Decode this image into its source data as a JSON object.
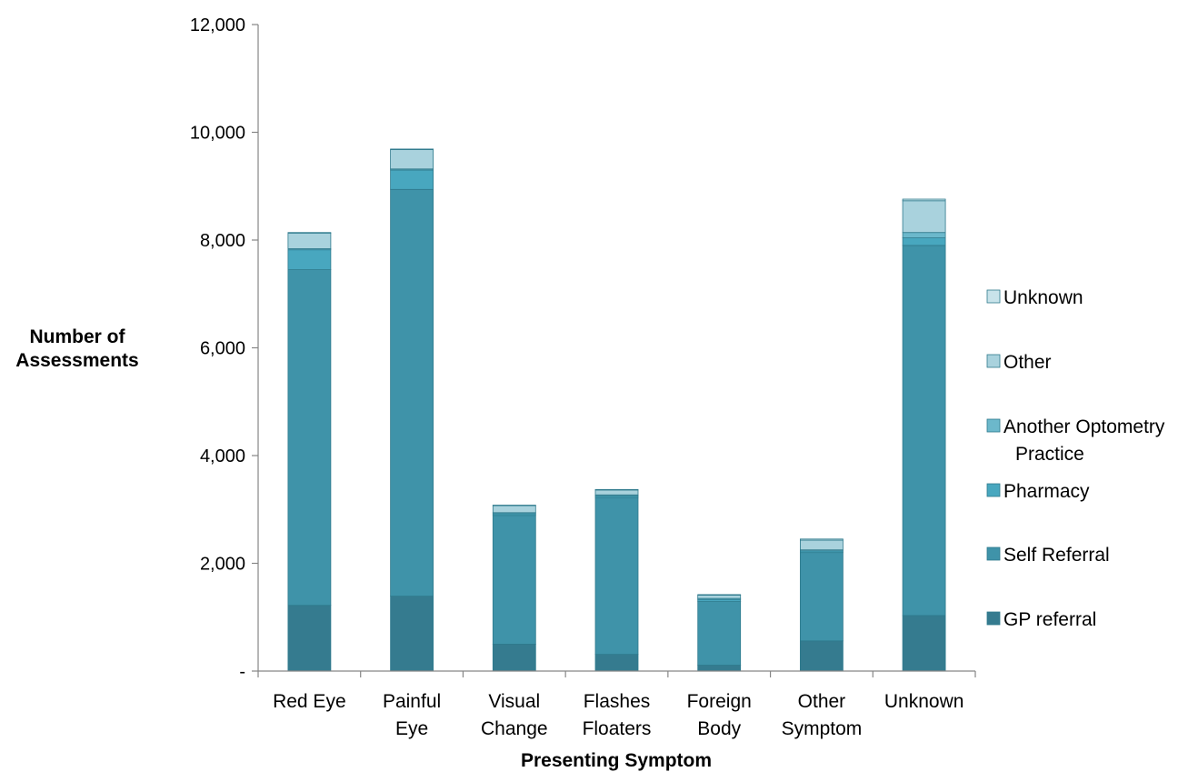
{
  "chart_data": {
    "type": "bar",
    "stacked": true,
    "categories": [
      [
        "Red Eye"
      ],
      [
        "Painful",
        "Eye"
      ],
      [
        "Visual",
        "Change"
      ],
      [
        "Flashes",
        "Floaters"
      ],
      [
        "Foreign",
        "Body"
      ],
      [
        "Other",
        "Symptom"
      ],
      [
        "Unknown"
      ]
    ],
    "series": [
      {
        "name": "GP referral",
        "color": "#357b8f",
        "values": [
          1220,
          1390,
          500,
          310,
          110,
          560,
          1030
        ]
      },
      {
        "name": "Self Referral",
        "color": "#3f93a9",
        "values": [
          6230,
          7550,
          2390,
          2910,
          1180,
          1640,
          6870
        ]
      },
      {
        "name": "Pharmacy",
        "color": "#48a7bf",
        "values": [
          370,
          360,
          30,
          30,
          40,
          30,
          140
        ]
      },
      {
        "name": "Another Optometry Practice",
        "color": "#6cb8cb",
        "values": [
          20,
          20,
          20,
          20,
          20,
          20,
          100
        ]
      },
      {
        "name": "Other",
        "color": "#a9d2dd",
        "values": [
          290,
          360,
          130,
          90,
          60,
          180,
          590
        ]
      },
      {
        "name": "Unknown",
        "color": "#c8e3ea",
        "values": [
          10,
          10,
          10,
          10,
          10,
          20,
          30
        ]
      }
    ],
    "legend_order": [
      "Unknown",
      "Other",
      "Another Optometry Practice",
      "Pharmacy",
      "Self Referral",
      "GP referral"
    ],
    "legend_position": "right",
    "xlabel": "Presenting Symptom",
    "ylabel": [
      "Number of",
      "Assessments"
    ],
    "ylim": [
      0,
      12000
    ],
    "yticks": [
      0,
      2000,
      4000,
      6000,
      8000,
      10000,
      12000
    ],
    "ytick_labels": [
      "-",
      "2,000",
      "4,000",
      "6,000",
      "8,000",
      "10,000",
      "12,000"
    ],
    "grid": false
  }
}
